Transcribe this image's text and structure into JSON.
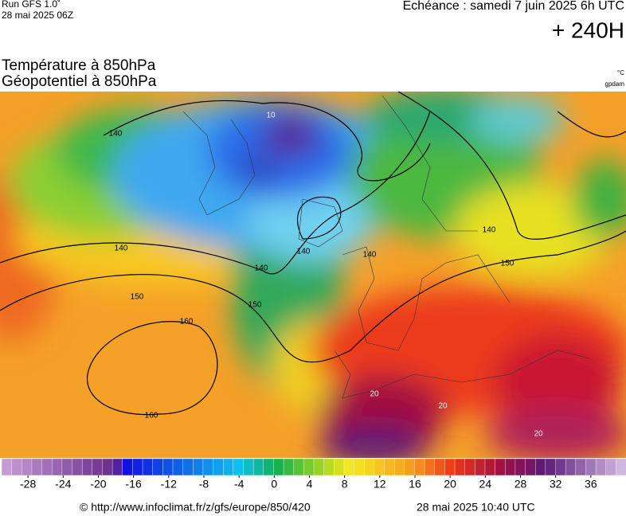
{
  "header": {
    "run": "Run GFS 1.0˚",
    "run_date": "28 mai 2025 06Z",
    "valid": "Echéance : samedi 7 juin 2025 6h UTC",
    "lead": "+ 240H"
  },
  "titles": [
    "Température à 850hPa",
    "Géopotentiel à 850hPa"
  ],
  "units": [
    "°C",
    "gpdam"
  ],
  "map": {
    "contour_labels": [
      "140",
      "140",
      "140",
      "140",
      "140",
      "140",
      "150",
      "150",
      "150",
      "160",
      "160",
      "10",
      "20",
      "20",
      "20"
    ]
  },
  "colorbar": {
    "range": [
      -31,
      40
    ],
    "ticks": [
      -28,
      -24,
      -20,
      -16,
      -12,
      -8,
      -4,
      0,
      4,
      8,
      12,
      16,
      20,
      24,
      28,
      32,
      36
    ]
  },
  "footer": {
    "url": "© http://www.infoclimat.fr/z/gfs/europe/850/420",
    "generated": "28 mai 2025 10:40 UTC"
  }
}
